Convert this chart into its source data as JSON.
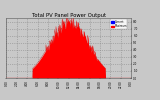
{
  "title": "Total PV Panel Power Output",
  "title_fontsize": 3.8,
  "bg_color": "#c8c8c8",
  "plot_bg_color": "#c8c8c8",
  "fill_color": "#ff0000",
  "line_color": "#dd0000",
  "legend_label_current": "Current",
  "legend_label_max": "Maximum",
  "legend_color_current": "#0000ff",
  "legend_color_max": "#ff0000",
  "ytick_labels": [
    "0.0",
    "1.0",
    "2.0",
    "3.0",
    "4.0",
    "5.0",
    "6.0",
    "7.0",
    "8.0"
  ],
  "ylim": [
    0,
    8.5
  ],
  "grid_color": "#888888",
  "num_points": 288,
  "x_tick_labels": [
    "0:00",
    "2:00",
    "4:00",
    "6:00",
    "8:00",
    "10:00",
    "12:00",
    "14:00",
    "16:00",
    "18:00",
    "20:00",
    "22:00",
    "0:00"
  ]
}
